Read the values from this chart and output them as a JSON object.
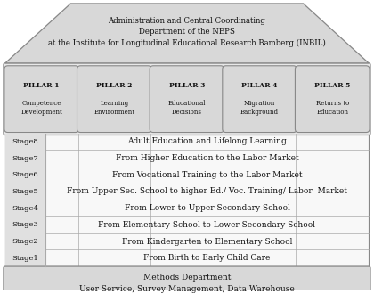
{
  "title_roof": "Administration and Central Coordinating\nDepartment of the NEPS\nat the Institute for Longitudinal Educational Research Bamberg (INBIL)",
  "pillars": [
    {
      "label": "PILLAR 1",
      "sub": "Competence\nDevelopment"
    },
    {
      "label": "PILLAR 2",
      "sub": "Learning\nEnvironment"
    },
    {
      "label": "PILLAR 3",
      "sub": "Educational\nDecisions"
    },
    {
      "label": "PILLAR 4",
      "sub": "Migration\nBackground"
    },
    {
      "label": "PILLAR 5",
      "sub": "Returns to\nEducation"
    }
  ],
  "stages": [
    {
      "label": "Stage8",
      "text": "Adult Education and Lifelong Learning"
    },
    {
      "label": "Stage7",
      "text": "From Higher Education to the Labor Market"
    },
    {
      "label": "Stage6",
      "text": "From Vocational Training to the Labor Market"
    },
    {
      "label": "Stage5",
      "text": "From Upper Sec. School to higher Ed./ Voc. Training/ Labor  Market"
    },
    {
      "label": "Stage4",
      "text": "From Lower to Upper Secondary School"
    },
    {
      "label": "Stage3",
      "text": "From Elementary School to Lower Secondary School"
    },
    {
      "label": "Stage2",
      "text": "From Kindergarten to Elementary School"
    },
    {
      "label": "Stage1",
      "text": "From Birth to Early Child Care"
    }
  ],
  "footer": "Methods Department\nUser Service, Survey Management, Data Warehouse",
  "pillar_color": "#d8d8d8",
  "pillar_bg": "#e8e8e8",
  "roof_color": "#d8d8d8",
  "footer_color": "#d8d8d8",
  "stage_label_bg": "#e0e0e0",
  "stage_bg": "#f8f8f8",
  "font_color": "#111111",
  "border_color": "#888888",
  "divider_color": "#aaaaaa"
}
